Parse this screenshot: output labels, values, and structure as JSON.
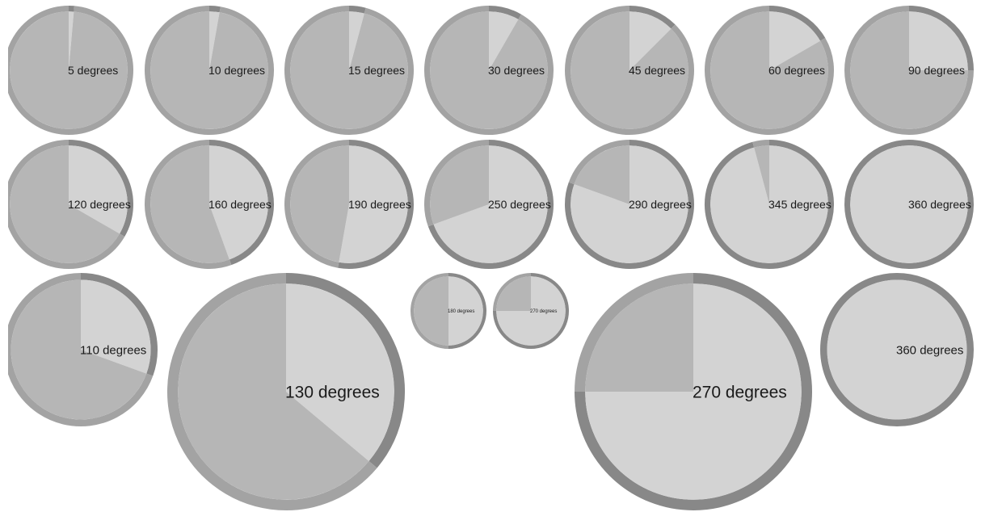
{
  "colors": {
    "light_fill": "#d3d3d3",
    "dark_fill": "#b6b6b6",
    "dark_ring": "#888888",
    "light_ring": "#a3a3a3"
  },
  "pies": [
    {
      "id": "pie-5",
      "degrees": 5,
      "label": "5 degrees"
    },
    {
      "id": "pie-10",
      "degrees": 10,
      "label": "10 degrees"
    },
    {
      "id": "pie-15",
      "degrees": 15,
      "label": "15 degrees"
    },
    {
      "id": "pie-30",
      "degrees": 30,
      "label": "30 degrees"
    },
    {
      "id": "pie-45",
      "degrees": 45,
      "label": "45 degrees"
    },
    {
      "id": "pie-60",
      "degrees": 60,
      "label": "60 degrees"
    },
    {
      "id": "pie-90",
      "degrees": 90,
      "label": "90 degrees"
    },
    {
      "id": "pie-120",
      "degrees": 120,
      "label": "120 degrees"
    },
    {
      "id": "pie-160",
      "degrees": 160,
      "label": "160 degrees"
    },
    {
      "id": "pie-190",
      "degrees": 190,
      "label": "190 degrees"
    },
    {
      "id": "pie-250",
      "degrees": 250,
      "label": "250 degrees"
    },
    {
      "id": "pie-290",
      "degrees": 290,
      "label": "290 degrees"
    },
    {
      "id": "pie-345",
      "degrees": 345,
      "label": "345 degrees"
    },
    {
      "id": "pie-360-a",
      "degrees": 360,
      "label": "360 degrees"
    },
    {
      "id": "pie-110",
      "degrees": 110,
      "label": "110 degrees"
    },
    {
      "id": "pie-130",
      "degrees": 130,
      "label": "130 degrees"
    },
    {
      "id": "pie-180",
      "degrees": 180,
      "label": "180 degrees"
    },
    {
      "id": "pie-270-small",
      "degrees": 270,
      "label": "270 degrees"
    },
    {
      "id": "pie-270-large",
      "degrees": 270,
      "label": "270 degrees"
    },
    {
      "id": "pie-360-b",
      "degrees": 360,
      "label": "360 degrees"
    }
  ]
}
